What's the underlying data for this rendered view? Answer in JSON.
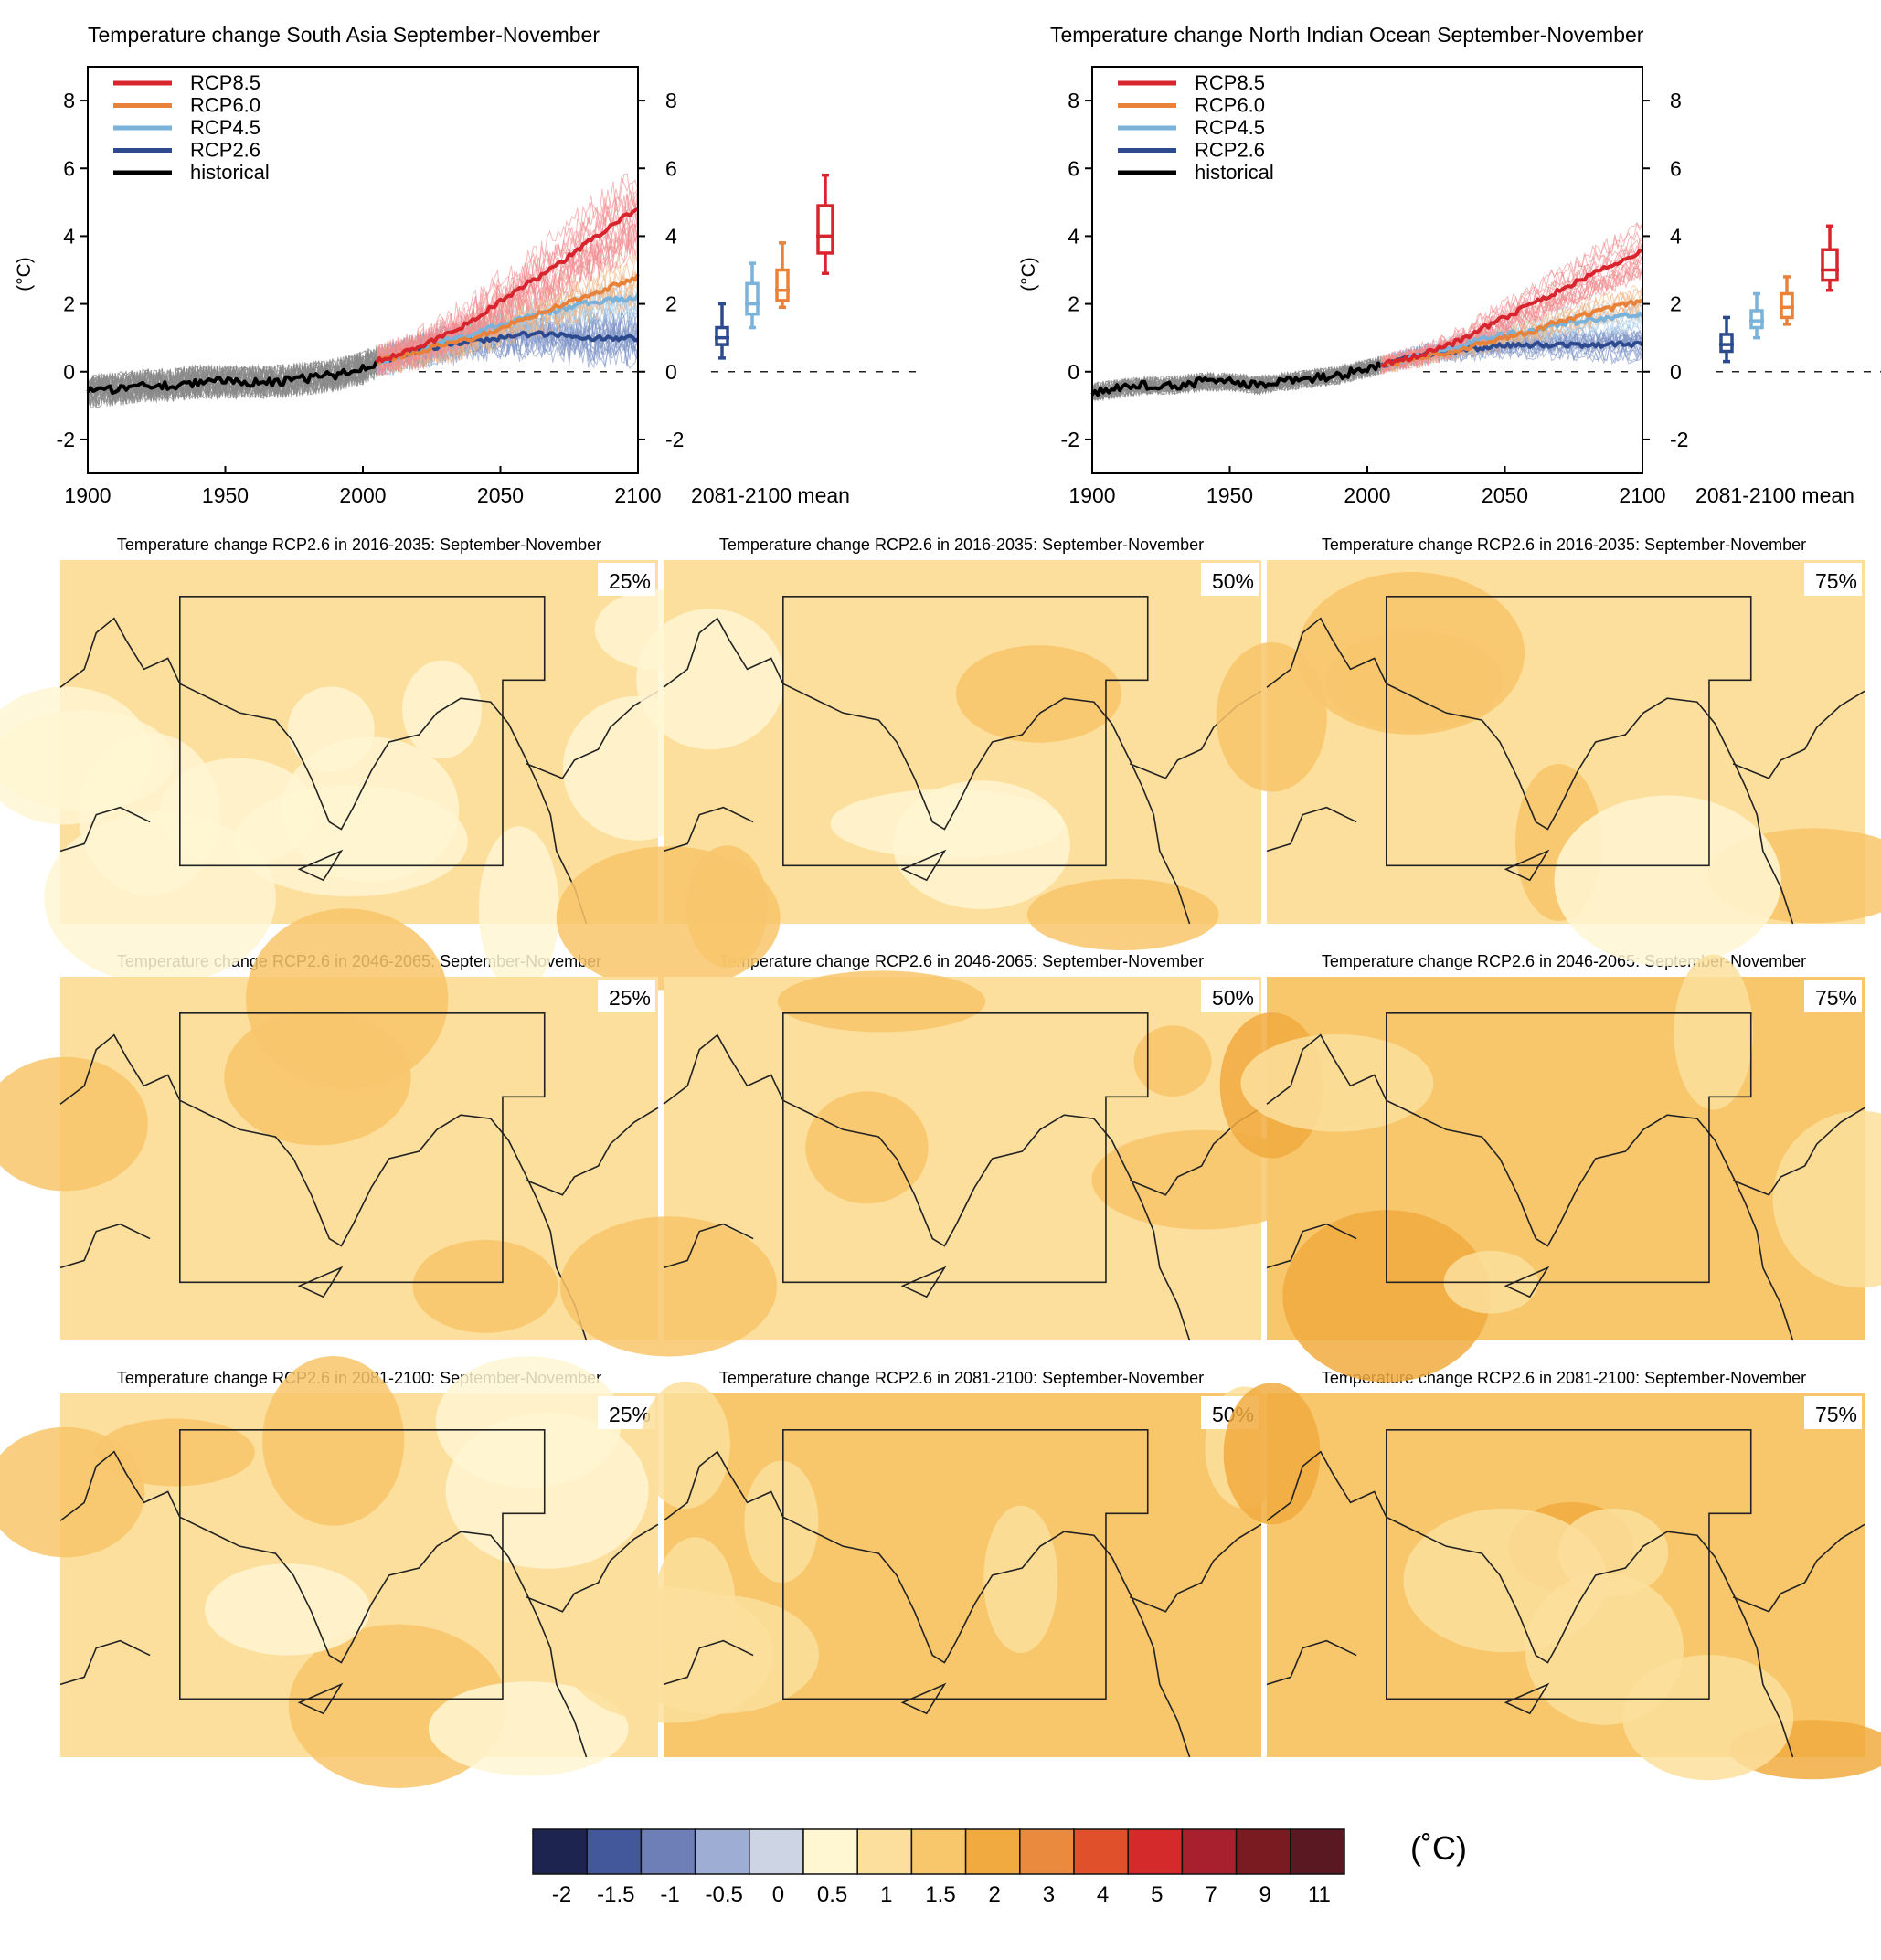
{
  "palette": {
    "scenario_colors": {
      "RCP8.5": "#d7242d",
      "RCP6.0": "#e8823a",
      "RCP4.5": "#7bb2d9",
      "RCP2.6": "#2e4a8e",
      "historical": "#000000"
    },
    "bins": [
      {
        "label": "-2",
        "color": "#1e2450"
      },
      {
        "label": "-1.5",
        "color": "#43589a"
      },
      {
        "label": "-1",
        "color": "#6d7fb6"
      },
      {
        "label": "-0.5",
        "color": "#9eadd3"
      },
      {
        "label": "0",
        "color": "#cdd5e5"
      },
      {
        "label": "0.5",
        "color": "#fff6d2"
      },
      {
        "label": "1",
        "color": "#fcdf9c"
      },
      {
        "label": "1.5",
        "color": "#f8c66b"
      },
      {
        "label": "2",
        "color": "#f1aa3f"
      },
      {
        "label": "3",
        "color": "#e98a3f"
      },
      {
        "label": "4",
        "color": "#e0502b"
      },
      {
        "label": "5",
        "color": "#d42a2c"
      },
      {
        "label": "7",
        "color": "#a8202d"
      },
      {
        "label": "9",
        "color": "#7a1b22"
      },
      {
        "label": "11",
        "color": "#5a1823"
      }
    ]
  },
  "colorbar": {
    "unit": "(˚C)"
  },
  "chart_data": [
    {
      "type": "line",
      "title": "Temperature change South Asia September-November",
      "ylabel": "(°C)",
      "xlim": [
        1900,
        2100
      ],
      "ylim": [
        -3,
        9
      ],
      "xticks": [
        1900,
        1950,
        2000,
        2050,
        2100
      ],
      "yticks": [
        -2,
        0,
        2,
        4,
        6,
        8
      ],
      "box_label": "2081-2100 mean",
      "legend": [
        "RCP8.5",
        "RCP6.0",
        "RCP4.5",
        "RCP2.6",
        "historical"
      ],
      "legend_position": "top-left",
      "series": [
        {
          "name": "historical",
          "x": [
            1900,
            1910,
            1920,
            1930,
            1940,
            1950,
            1960,
            1970,
            1980,
            1990,
            2000,
            2005
          ],
          "y": [
            -0.6,
            -0.5,
            -0.4,
            -0.4,
            -0.3,
            -0.3,
            -0.3,
            -0.3,
            -0.2,
            -0.1,
            0.1,
            0.3
          ]
        },
        {
          "name": "RCP2.6",
          "x": [
            2005,
            2020,
            2030,
            2040,
            2050,
            2060,
            2070,
            2080,
            2090,
            2100
          ],
          "y": [
            0.3,
            0.6,
            0.8,
            0.9,
            1.0,
            1.1,
            1.1,
            1.0,
            1.0,
            1.0
          ]
        },
        {
          "name": "RCP4.5",
          "x": [
            2005,
            2020,
            2030,
            2040,
            2050,
            2060,
            2070,
            2080,
            2090,
            2100
          ],
          "y": [
            0.3,
            0.6,
            0.9,
            1.1,
            1.4,
            1.6,
            1.8,
            2.0,
            2.1,
            2.2
          ]
        },
        {
          "name": "RCP6.0",
          "x": [
            2005,
            2020,
            2030,
            2040,
            2050,
            2060,
            2070,
            2080,
            2090,
            2100
          ],
          "y": [
            0.3,
            0.6,
            0.8,
            1.0,
            1.3,
            1.6,
            1.9,
            2.2,
            2.5,
            2.8
          ]
        },
        {
          "name": "RCP8.5",
          "x": [
            2005,
            2020,
            2030,
            2040,
            2050,
            2060,
            2070,
            2080,
            2090,
            2100
          ],
          "y": [
            0.3,
            0.7,
            1.1,
            1.5,
            2.1,
            2.6,
            3.1,
            3.7,
            4.3,
            4.8
          ]
        }
      ],
      "boxes": [
        {
          "name": "RCP2.6",
          "min": 0.4,
          "q1": 0.8,
          "median": 1.0,
          "q3": 1.3,
          "max": 2.0
        },
        {
          "name": "RCP4.5",
          "min": 1.3,
          "q1": 1.7,
          "median": 2.0,
          "q3": 2.6,
          "max": 3.2
        },
        {
          "name": "RCP6.0",
          "min": 1.9,
          "q1": 2.1,
          "median": 2.4,
          "q3": 3.0,
          "max": 3.8
        },
        {
          "name": "RCP8.5",
          "min": 2.9,
          "q1": 3.5,
          "median": 4.0,
          "q3": 4.9,
          "max": 5.8
        }
      ]
    },
    {
      "type": "line",
      "title": "Temperature change North Indian Ocean September-November",
      "ylabel": "(°C)",
      "xlim": [
        1900,
        2100
      ],
      "ylim": [
        -3,
        9
      ],
      "xticks": [
        1900,
        1950,
        2000,
        2050,
        2100
      ],
      "yticks": [
        -2,
        0,
        2,
        4,
        6,
        8
      ],
      "box_label": "2081-2100 mean",
      "legend": [
        "RCP8.5",
        "RCP6.0",
        "RCP4.5",
        "RCP2.6",
        "historical"
      ],
      "legend_position": "top-left",
      "series": [
        {
          "name": "historical",
          "x": [
            1900,
            1910,
            1920,
            1930,
            1940,
            1950,
            1960,
            1970,
            1980,
            1990,
            2000,
            2005
          ],
          "y": [
            -0.6,
            -0.5,
            -0.4,
            -0.4,
            -0.3,
            -0.3,
            -0.4,
            -0.3,
            -0.2,
            -0.1,
            0.1,
            0.2
          ]
        },
        {
          "name": "RCP2.6",
          "x": [
            2005,
            2020,
            2030,
            2040,
            2050,
            2060,
            2070,
            2080,
            2090,
            2100
          ],
          "y": [
            0.2,
            0.5,
            0.6,
            0.7,
            0.8,
            0.8,
            0.8,
            0.8,
            0.8,
            0.8
          ]
        },
        {
          "name": "RCP4.5",
          "x": [
            2005,
            2020,
            2030,
            2040,
            2050,
            2060,
            2070,
            2080,
            2090,
            2100
          ],
          "y": [
            0.2,
            0.5,
            0.7,
            0.9,
            1.1,
            1.2,
            1.4,
            1.5,
            1.6,
            1.7
          ]
        },
        {
          "name": "RCP6.0",
          "x": [
            2005,
            2020,
            2030,
            2040,
            2050,
            2060,
            2070,
            2080,
            2090,
            2100
          ],
          "y": [
            0.2,
            0.4,
            0.6,
            0.8,
            1.0,
            1.2,
            1.5,
            1.7,
            1.9,
            2.1
          ]
        },
        {
          "name": "RCP8.5",
          "x": [
            2005,
            2020,
            2030,
            2040,
            2050,
            2060,
            2070,
            2080,
            2090,
            2100
          ],
          "y": [
            0.2,
            0.5,
            0.8,
            1.2,
            1.6,
            2.0,
            2.4,
            2.8,
            3.2,
            3.6
          ]
        }
      ],
      "boxes": [
        {
          "name": "RCP2.6",
          "min": 0.3,
          "q1": 0.6,
          "median": 0.8,
          "q3": 1.1,
          "max": 1.6
        },
        {
          "name": "RCP4.5",
          "min": 1.0,
          "q1": 1.3,
          "median": 1.5,
          "q3": 1.8,
          "max": 2.3
        },
        {
          "name": "RCP6.0",
          "min": 1.4,
          "q1": 1.6,
          "median": 1.9,
          "q3": 2.3,
          "max": 2.8
        },
        {
          "name": "RCP8.5",
          "min": 2.4,
          "q1": 2.7,
          "median": 3.0,
          "q3": 3.6,
          "max": 4.3
        }
      ]
    },
    {
      "type": "heatmap",
      "rows": [
        {
          "title": "Temperature change RCP2.6 in 2016-2035: September-November"
        },
        {
          "title": "Temperature change RCP2.6 in 2046-2065: September-November"
        },
        {
          "title": "Temperature change RCP2.6 in 2081-2100: September-November"
        }
      ],
      "percentiles": [
        "25%",
        "50%",
        "75%"
      ],
      "fields": [
        [
          {
            "base": 6,
            "patches": [
              [
                1,
                5,
                0.6
              ],
              [
                1,
                5,
                0.45
              ]
            ]
          },
          {
            "base": 6,
            "patches": [
              [
                1,
                7,
                0.3
              ],
              [
                1,
                5,
                0.25
              ]
            ]
          },
          {
            "base": 6,
            "patches": [
              [
                1,
                7,
                0.4
              ],
              [
                1,
                5,
                0.1
              ]
            ]
          }
        ],
        [
          {
            "base": 6,
            "patches": [
              [
                1,
                7,
                0.35
              ]
            ]
          },
          {
            "base": 6,
            "patches": [
              [
                1,
                7,
                0.45
              ]
            ]
          },
          {
            "base": 7,
            "patches": [
              [
                1,
                8,
                0.2
              ],
              [
                1,
                6,
                0.3
              ]
            ]
          }
        ],
        [
          {
            "base": 6,
            "patches": [
              [
                1,
                7,
                0.35
              ],
              [
                1,
                5,
                0.3
              ]
            ]
          },
          {
            "base": 7,
            "patches": [
              [
                1,
                6,
                0.55
              ]
            ]
          },
          {
            "base": 7,
            "patches": [
              [
                1,
                8,
                0.25
              ],
              [
                1,
                6,
                0.3
              ]
            ]
          }
        ]
      ]
    }
  ]
}
